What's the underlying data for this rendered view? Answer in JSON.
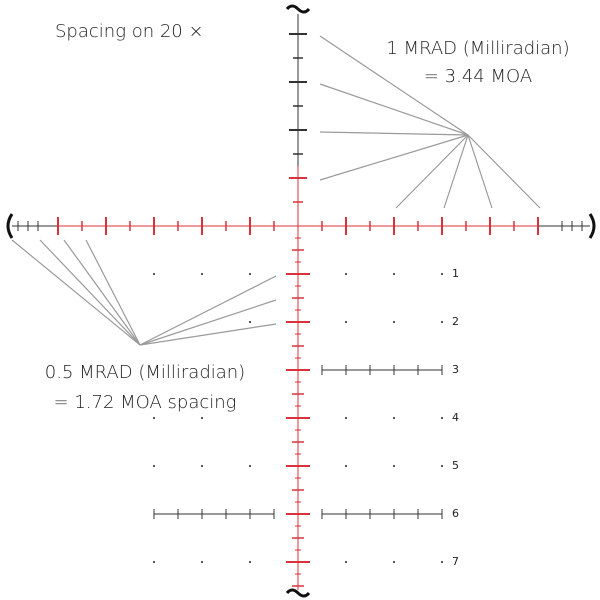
{
  "title": "Spacing on 20 ×",
  "callouts": [
    {
      "lines": [
        "1 MRAD (Milliradian)",
        "= 3.44 MOA"
      ]
    },
    {
      "lines": [
        "0.5 MRAD (Milliradian)",
        "= 1.72 MOA spacing"
      ]
    }
  ],
  "row_labels": [
    "1",
    "2",
    "3",
    "4",
    "5",
    "6",
    "7"
  ]
}
